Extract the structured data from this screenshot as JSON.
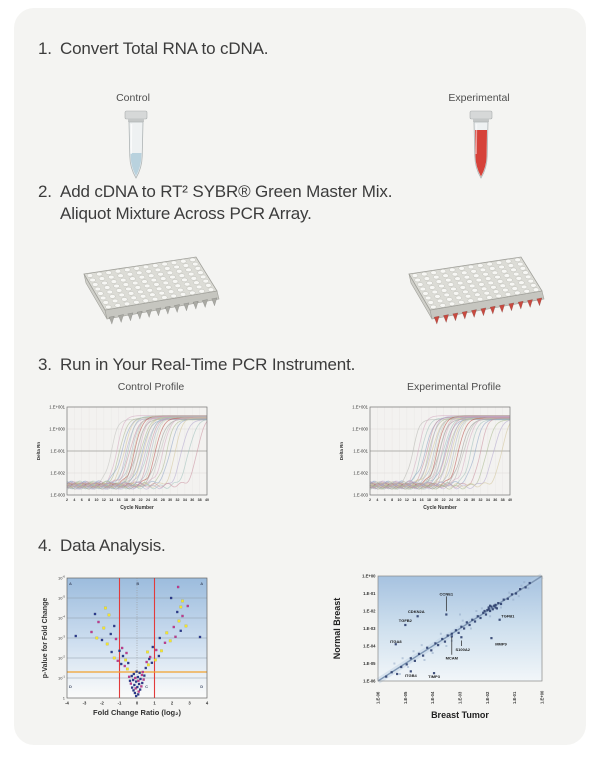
{
  "steps": [
    {
      "num": "1.",
      "line1": "Convert Total RNA to cDNA."
    },
    {
      "num": "2.",
      "line1": "Add cDNA to RT² SYBR® Green Master Mix.",
      "line2": "Aliquot Mixture Across PCR Array."
    },
    {
      "num": "3.",
      "line1": "Run in Your Real-Time PCR Instrument."
    },
    {
      "num": "4.",
      "line1": "Data Analysis."
    }
  ],
  "tubes": {
    "control_label": "Control",
    "experimental_label": "Experimental",
    "control_liquid": "#b9d2de",
    "experimental_liquid": "#d6423a"
  },
  "plates": {
    "control_tip": "#aaaaa4",
    "experimental_tip": "#c84a40"
  },
  "chart_data": [
    {
      "id": "amp-control",
      "type": "line",
      "title": "Control Profile",
      "xlabel": "Cycle Number",
      "ylabel": "Delta Rn",
      "x_ticks": [
        2,
        4,
        6,
        8,
        10,
        12,
        14,
        16,
        18,
        20,
        22,
        24,
        26,
        28,
        30,
        32,
        34,
        36,
        38,
        40
      ],
      "y_ticks": [
        "1.E+001",
        "1.E+000",
        "1.E-001",
        "1.E-002",
        "1.E-003"
      ],
      "threshold_tick": "1.E-001",
      "ct_values": [
        14,
        15.5,
        16.3,
        17,
        17.6,
        18.1,
        18.6,
        19.1,
        19.6,
        20,
        20.4,
        20.8,
        21.2,
        21.6,
        22,
        22.4,
        22.8,
        23.3,
        23.8,
        24.3,
        24.8,
        25.4,
        26,
        26.6,
        27.3,
        28.1,
        29,
        30,
        31.4,
        33,
        35,
        37.4
      ],
      "curve_colors": [
        "#c2c2be",
        "#d4a8bf",
        "#aab98f",
        "#8ea3c6",
        "#d2c49a",
        "#b3a6cf",
        "#9fc0ba",
        "#c98f9f",
        "#a7b4c4",
        "#c7cdb2",
        "#b84f48",
        "#9a9a96"
      ]
    },
    {
      "id": "amp-exp",
      "type": "line",
      "title": "Experimental Profile",
      "xlabel": "Cycle Number",
      "ylabel": "Delta Rn",
      "x_ticks": [
        2,
        4,
        6,
        8,
        10,
        12,
        14,
        16,
        18,
        20,
        22,
        24,
        26,
        28,
        30,
        32,
        34,
        36,
        38,
        40
      ],
      "y_ticks": [
        "1.E+001",
        "1.E+000",
        "1.E-001",
        "1.E-002",
        "1.E-003"
      ],
      "threshold_tick": "1.E-001",
      "ct_values": [
        13.6,
        15.1,
        16,
        17.1,
        17.5,
        18,
        18.4,
        18.9,
        19.4,
        19.9,
        20.3,
        20.7,
        21.1,
        21.5,
        21.9,
        22.3,
        22.7,
        23.2,
        23.7,
        24.2,
        24.7,
        25.3,
        26,
        26.7,
        27.4,
        28.3,
        29.3,
        30.5,
        32,
        33.6,
        35.5,
        37.8
      ],
      "curve_colors": [
        "#b5b5b1",
        "#d4a8bf",
        "#9fc0ba",
        "#8ea3c6",
        "#c98f9f",
        "#aab98f",
        "#b3a6cf",
        "#d2c49a",
        "#a7b4c4",
        "#c7cdb2",
        "#b84f48",
        "#9a9a96"
      ]
    },
    {
      "id": "volcano",
      "type": "scatter",
      "xlabel": "Fold Change Ratio (log₂)",
      "ylabel": "p-Value for Fold Change",
      "x_ticks": [
        -4,
        -3,
        -2,
        -1,
        0,
        1,
        2,
        3,
        4
      ],
      "y_tick_exponents": [
        -6,
        -5,
        -4,
        -3,
        -2,
        -1,
        0
      ],
      "fold_cutoff_lines": [
        -1,
        1
      ],
      "fold_line_color": "#e23b3b",
      "p_cutoff_exponent": 1.3,
      "p_line_color": "#f2a22e",
      "region_labels": [
        {
          "t": "A",
          "x": -3.8,
          "e": 5.65
        },
        {
          "t": "B",
          "x": 0.05,
          "e": 5.65
        },
        {
          "t": "A",
          "x": 3.7,
          "e": 5.65
        },
        {
          "t": "D",
          "x": -3.8,
          "e": 0.5
        },
        {
          "t": "C",
          "x": 0.55,
          "e": 0.5
        },
        {
          "t": "D",
          "x": 3.7,
          "e": 0.5
        }
      ],
      "point_colors": [
        "#2b3a8c",
        "#bf3a8e",
        "#f3e42f"
      ],
      "points": [
        [
          -0.05,
          0.1,
          0
        ],
        [
          0.07,
          0.18,
          0
        ],
        [
          -0.12,
          0.25,
          0
        ],
        [
          0.1,
          0.32,
          1
        ],
        [
          -0.2,
          0.38,
          0
        ],
        [
          0.18,
          0.42,
          0
        ],
        [
          -0.08,
          0.48,
          1
        ],
        [
          0.02,
          0.55,
          0
        ],
        [
          -0.28,
          0.52,
          0
        ],
        [
          0.25,
          0.58,
          1
        ],
        [
          -0.15,
          0.65,
          0
        ],
        [
          0.12,
          0.7,
          0
        ],
        [
          -0.35,
          0.72,
          1
        ],
        [
          0.3,
          0.75,
          0
        ],
        [
          -0.05,
          0.82,
          0
        ],
        [
          0.08,
          0.86,
          1
        ],
        [
          -0.22,
          0.9,
          0
        ],
        [
          0.2,
          0.95,
          0
        ],
        [
          -0.4,
          0.86,
          0
        ],
        [
          0.38,
          0.92,
          1
        ],
        [
          -0.1,
          1.0,
          1
        ],
        [
          0.05,
          1.05,
          0
        ],
        [
          -0.3,
          1.1,
          0
        ],
        [
          0.28,
          1.15,
          1
        ],
        [
          -0.18,
          1.2,
          0
        ],
        [
          0.15,
          1.26,
          0
        ],
        [
          -0.45,
          1.06,
          1
        ],
        [
          0.42,
          1.12,
          0
        ],
        [
          -0.02,
          1.32,
          0
        ],
        [
          0.33,
          1.3,
          1
        ],
        [
          -0.55,
          1.45,
          2
        ],
        [
          0.5,
          1.5,
          0
        ],
        [
          -0.7,
          1.6,
          1
        ],
        [
          0.65,
          1.66,
          2
        ],
        [
          -0.5,
          1.75,
          0
        ],
        [
          0.55,
          1.8,
          1
        ],
        [
          -0.9,
          1.7,
          0
        ],
        [
          0.85,
          1.76,
          0
        ],
        [
          -0.65,
          1.9,
          2
        ],
        [
          0.7,
          1.95,
          0
        ],
        [
          -1.1,
          1.86,
          1
        ],
        [
          1.05,
          1.9,
          2
        ],
        [
          -0.8,
          2.1,
          0
        ],
        [
          0.75,
          2.05,
          1
        ],
        [
          -1.3,
          2.0,
          2
        ],
        [
          1.25,
          2.1,
          0
        ],
        [
          -0.6,
          2.25,
          1
        ],
        [
          0.6,
          2.3,
          2
        ],
        [
          -1.0,
          2.36,
          0
        ],
        [
          1.1,
          2.4,
          1
        ],
        [
          -1.45,
          2.3,
          0
        ],
        [
          1.4,
          2.36,
          2
        ],
        [
          -0.85,
          2.5,
          1
        ],
        [
          0.9,
          2.55,
          0
        ],
        [
          -1.7,
          2.7,
          2
        ],
        [
          1.6,
          2.76,
          1
        ],
        [
          -2.0,
          2.9,
          0
        ],
        [
          1.9,
          2.86,
          2
        ],
        [
          -1.2,
          2.95,
          1
        ],
        [
          1.3,
          3.0,
          0
        ],
        [
          -2.3,
          3.0,
          2
        ],
        [
          2.2,
          3.06,
          1
        ],
        [
          -1.5,
          3.2,
          0
        ],
        [
          1.7,
          3.26,
          2
        ],
        [
          -2.6,
          3.3,
          1
        ],
        [
          2.5,
          3.36,
          0
        ],
        [
          -1.9,
          3.5,
          2
        ],
        [
          2.1,
          3.55,
          1
        ],
        [
          -1.3,
          3.6,
          0
        ],
        [
          2.8,
          3.6,
          2
        ],
        [
          -2.2,
          3.8,
          1
        ],
        [
          2.4,
          3.85,
          2
        ],
        [
          3.6,
          3.05,
          0
        ],
        [
          -3.5,
          3.1,
          0
        ],
        [
          2.6,
          4.1,
          1
        ],
        [
          -1.6,
          4.15,
          2
        ],
        [
          2.3,
          4.3,
          0
        ],
        [
          2.5,
          4.55,
          2
        ],
        [
          -2.4,
          4.2,
          0
        ],
        [
          2.9,
          4.6,
          1
        ],
        [
          2.35,
          5.55,
          1
        ],
        [
          2.6,
          4.85,
          2
        ],
        [
          -1.8,
          4.5,
          2
        ],
        [
          1.95,
          5.0,
          0
        ]
      ]
    },
    {
      "id": "breast-scatter",
      "type": "scatter",
      "xlabel": "Breast Tumor",
      "ylabel": "Normal Breast",
      "x_ticks": [
        "1.E-06",
        "1.E-05",
        "1.E-04",
        "1.E-03",
        "1.E-02",
        "1.E-01",
        "1.E+00"
      ],
      "y_ticks": [
        "1.E+00",
        "1.E-01",
        "1.E-02",
        "1.E-03",
        "1.E-04",
        "1.E-05",
        "1.E-06"
      ],
      "exp_range": [
        -6,
        0
      ],
      "point_color": "#2e3f6e",
      "faint_color": "#93a9c6",
      "points": [
        [
          -5.7,
          -5.75
        ],
        [
          -5.5,
          -5.5
        ],
        [
          -5.3,
          -5.6
        ],
        [
          -5.15,
          -5.2
        ],
        [
          -4.95,
          -5.05
        ],
        [
          -4.8,
          -4.7
        ],
        [
          -4.65,
          -4.85
        ],
        [
          -4.5,
          -4.45
        ],
        [
          -4.35,
          -4.55
        ],
        [
          -4.2,
          -4.1
        ],
        [
          -4.05,
          -4.25
        ],
        [
          -3.9,
          -3.85
        ],
        [
          -3.8,
          -3.95
        ],
        [
          -3.65,
          -3.6
        ],
        [
          -3.55,
          -3.75
        ],
        [
          -3.45,
          -3.4
        ],
        [
          -3.3,
          -3.45
        ],
        [
          -3.15,
          -3.1
        ],
        [
          -3.05,
          -3.25
        ],
        [
          -2.95,
          -2.9
        ],
        [
          -2.85,
          -3.0
        ],
        [
          -2.75,
          -2.65
        ],
        [
          -2.65,
          -2.8
        ],
        [
          -2.55,
          -2.5
        ],
        [
          -2.45,
          -2.6
        ],
        [
          -2.35,
          -2.3
        ],
        [
          -2.25,
          -2.4
        ],
        [
          -2.15,
          -2.1
        ],
        [
          -2.05,
          -2.2
        ],
        [
          -1.95,
          -1.9
        ],
        [
          -1.9,
          -2.0
        ],
        [
          -1.75,
          -1.7
        ],
        [
          -1.7,
          -1.8
        ],
        [
          -1.6,
          -1.55
        ],
        [
          -1.5,
          -1.6
        ],
        [
          -1.4,
          -1.35
        ],
        [
          -1.25,
          -1.3
        ],
        [
          -1.1,
          -1.05
        ],
        [
          -0.95,
          -1.0
        ],
        [
          -0.8,
          -0.75
        ],
        [
          -0.6,
          -0.65
        ],
        [
          -0.45,
          -0.4
        ],
        [
          -1.85,
          -1.75
        ],
        [
          -1.8,
          -1.9
        ],
        [
          -1.95,
          -1.8
        ],
        [
          -2.0,
          -1.95
        ],
        [
          -1.7,
          -1.65
        ],
        [
          -2.1,
          -2.0
        ],
        [
          -1.65,
          -1.85
        ],
        [
          -1.9,
          -1.7
        ],
        [
          -3.5,
          -2.2
        ],
        [
          -4.55,
          -2.3
        ],
        [
          -5.0,
          -2.8
        ],
        [
          -5.35,
          -3.9
        ],
        [
          -4.8,
          -5.45
        ],
        [
          -3.95,
          -5.55
        ],
        [
          -3.3,
          -3.3
        ],
        [
          -2.95,
          -3.5
        ],
        [
          -1.85,
          -3.55
        ],
        [
          -1.55,
          -2.5
        ]
      ],
      "faint_points": [
        [
          -5.4,
          -5.0
        ],
        [
          -5.1,
          -4.7
        ],
        [
          -4.7,
          -4.3
        ],
        [
          -4.4,
          -3.95
        ],
        [
          -4.0,
          -4.4
        ],
        [
          -3.7,
          -3.3
        ],
        [
          -3.3,
          -3.7
        ],
        [
          -2.9,
          -2.55
        ],
        [
          -2.6,
          -3.0
        ],
        [
          -2.2,
          -1.85
        ],
        [
          -1.9,
          -2.3
        ],
        [
          -1.5,
          -1.8
        ],
        [
          -1.2,
          -0.95
        ],
        [
          -0.85,
          -1.15
        ],
        [
          -5.2,
          -5.6
        ],
        [
          -4.9,
          -5.2
        ],
        [
          -0.65,
          -0.35
        ],
        [
          -0.5,
          -0.7
        ],
        [
          -3.0,
          -2.2
        ],
        [
          -2.4,
          -2.0
        ],
        [
          -4.3,
          -4.8
        ],
        [
          -3.5,
          -4.0
        ],
        [
          -1.05,
          -1.35
        ],
        [
          -0.75,
          -0.55
        ]
      ],
      "genes": [
        {
          "label": "CCNE1",
          "lx": -3.5,
          "ly": -1.05,
          "px": -3.5,
          "py": -2.1
        },
        {
          "label": "CDKN2A",
          "lx": -4.6,
          "ly": -2.05
        },
        {
          "label": "TGFB2",
          "lx": -5.0,
          "ly": -2.55
        },
        {
          "label": "ITGA8",
          "lx": -5.35,
          "ly": -3.75
        },
        {
          "label": "ITGB4",
          "lx": -4.8,
          "ly": -5.7
        },
        {
          "label": "TIMP3",
          "lx": -3.95,
          "ly": -5.75
        },
        {
          "label": "MCAM",
          "lx": -3.3,
          "ly": -4.7,
          "px": -3.3,
          "py": -3.4
        },
        {
          "label": "S100A2",
          "lx": -2.9,
          "ly": -4.2,
          "px": -2.95,
          "py": -3.6
        },
        {
          "label": "MMP9",
          "lx": -1.5,
          "ly": -3.9
        },
        {
          "label": "TGFB1",
          "lx": -1.25,
          "ly": -2.3
        }
      ]
    }
  ]
}
